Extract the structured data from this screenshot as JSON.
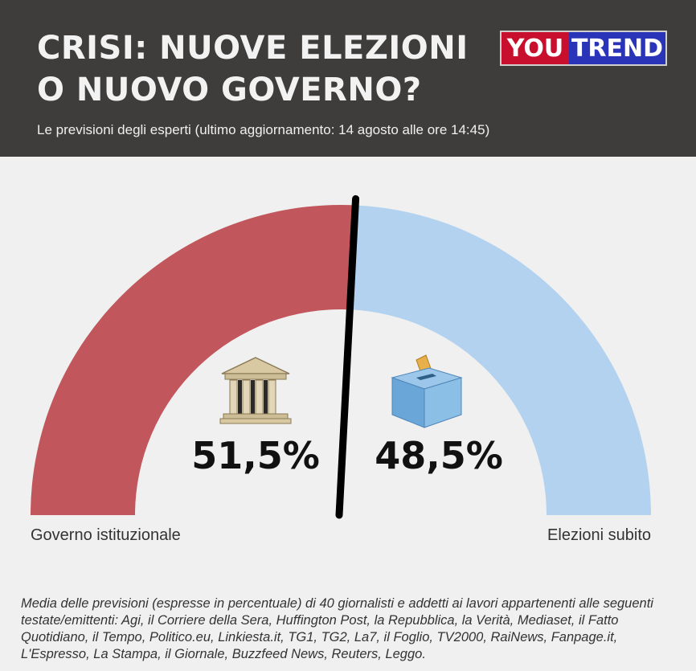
{
  "header": {
    "title_line1": "CRISI: NUOVE ELEZIONI",
    "title_line2": "O NUOVO GOVERNO?",
    "subtitle": "Le previsioni degli esperti (ultimo aggiornamento: 14 agosto alle ore 14:45)",
    "logo": {
      "part1": "YOU",
      "part2": "TREND"
    }
  },
  "chart_data": {
    "type": "pie",
    "style": "half-donut gauge",
    "categories": [
      "Governo istituzionale",
      "Elezioni subito"
    ],
    "values": [
      51.5,
      48.5
    ],
    "labels": [
      "51,5%",
      "48,5%"
    ],
    "icons": [
      "government-building-icon",
      "ballot-box-icon"
    ],
    "colors": [
      "#c1565c",
      "#b3d2ef"
    ],
    "needle_color": "#000000"
  },
  "footnote": "Media delle previsioni (espresse in percentuale) di 40 giornalisti e addetti ai lavori appartenenti alle seguenti testate/emittenti: Agi, il Corriere della Sera, Huffington Post, la Repubblica, la Verità, Mediaset, il Fatto Quotidiano, il Tempo, Politico.eu, Linkiesta.it, TG1, TG2, La7, il Foglio, TV2000, RaiNews, Fanpage.it, L'Espresso, La Stampa, il Giornale, Buzzfeed News, Reuters, Leggo."
}
